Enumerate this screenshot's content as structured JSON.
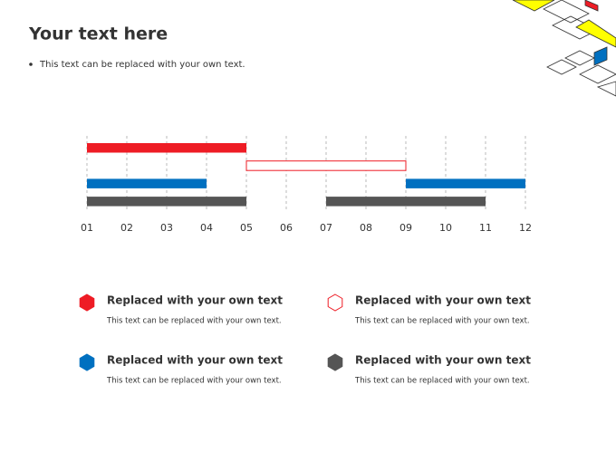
{
  "header": {
    "title": "Your text here",
    "bullet": "This text can be replaced with your own text."
  },
  "chart_data": {
    "type": "gantt",
    "xlim": [
      1,
      12
    ],
    "xticks": [
      {
        "value": 1,
        "label": "01"
      },
      {
        "value": 2,
        "label": "02"
      },
      {
        "value": 3,
        "label": "03"
      },
      {
        "value": 4,
        "label": "04"
      },
      {
        "value": 5,
        "label": "05"
      },
      {
        "value": 6,
        "label": "06"
      },
      {
        "value": 7,
        "label": "07"
      },
      {
        "value": 8,
        "label": "08"
      },
      {
        "value": 9,
        "label": "09"
      },
      {
        "value": 10,
        "label": "10"
      },
      {
        "value": 11,
        "label": "11"
      },
      {
        "value": 12,
        "label": "12"
      }
    ],
    "grid": true,
    "rows": [
      {
        "bars": [
          {
            "start": 1,
            "end": 5,
            "color": "#ee1c25"
          }
        ]
      },
      {
        "bars": [
          {
            "start": 5,
            "end": 9,
            "color": "#ee1c25",
            "outline": true
          }
        ]
      },
      {
        "bars": [
          {
            "start": 1,
            "end": 4,
            "color": "#0070c0"
          },
          {
            "start": 9,
            "end": 12,
            "color": "#0070c0"
          }
        ]
      },
      {
        "bars": [
          {
            "start": 1,
            "end": 5,
            "color": "#555555"
          },
          {
            "start": 7,
            "end": 11,
            "color": "#555555"
          }
        ]
      }
    ]
  },
  "legend": [
    {
      "title": "Replaced with your own text",
      "text": "This text can be replaced with your own text.",
      "color": "#ee1c25"
    },
    {
      "title": "Replaced with your own text",
      "text": "This text can be replaced with your own text.",
      "color": "#ee1c25",
      "outline": true
    },
    {
      "title": "Replaced with your own text",
      "text": "This text can be replaced with your own text.",
      "color": "#0070c0"
    },
    {
      "title": "Replaced with your own text",
      "text": "This text can be replaced with your own text.",
      "color": "#555555"
    }
  ]
}
